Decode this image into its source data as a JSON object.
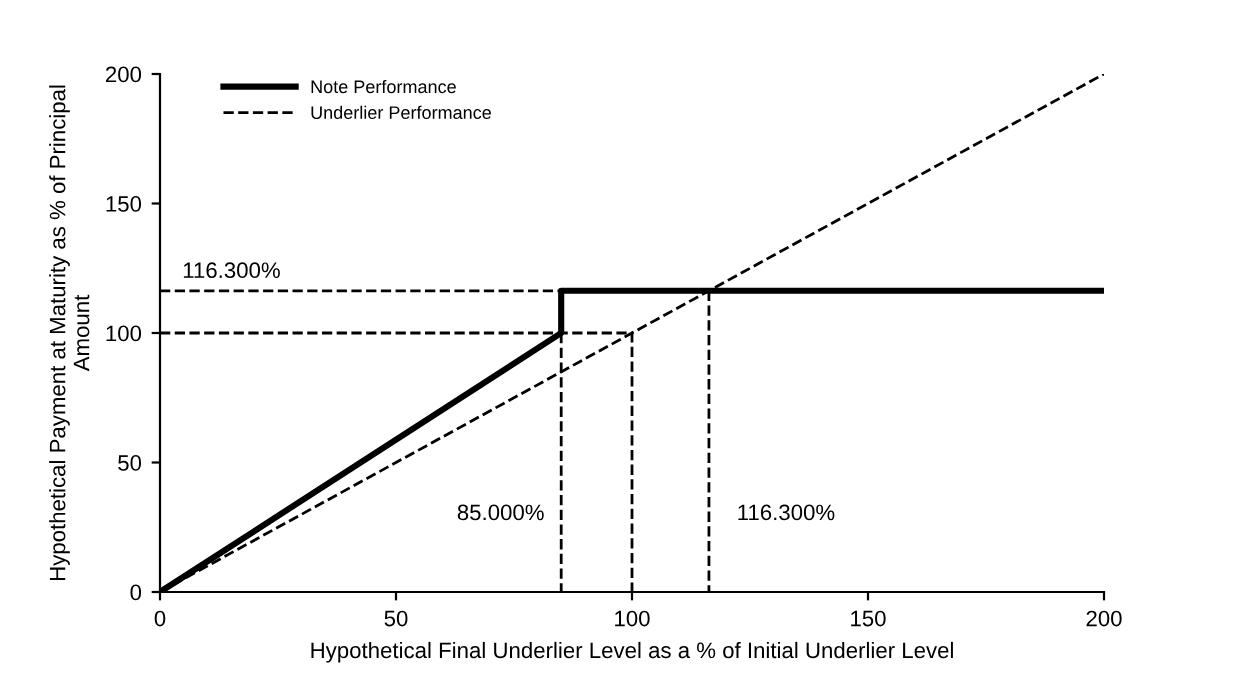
{
  "chart_data": {
    "type": "line",
    "xlabel": "Hypothetical Final Underlier Level as a % of Initial Underlier Level",
    "ylabel": "Hypothetical Payment at Maturity as % of Principal\nAmount",
    "xlim": [
      0,
      200
    ],
    "ylim": [
      0,
      200
    ],
    "xticks": [
      0,
      50,
      100,
      150,
      200
    ],
    "yticks": [
      0,
      50,
      100,
      150,
      200
    ],
    "grid": false,
    "legend": "top left",
    "marker": "none",
    "series": [
      {
        "name": "Note Performance",
        "color": "#000000",
        "line_style": "solid",
        "x": [
          0,
          85,
          85,
          200
        ],
        "values": [
          0,
          100,
          116.3,
          116.3
        ]
      },
      {
        "name": "Underlier Performance",
        "color": "#000000",
        "line_style": "dashed",
        "x": [
          0,
          200
        ],
        "values": [
          0,
          200
        ]
      },
      {
        "color": "#000000",
        "line_style": "dashed",
        "x": [
          0,
          85
        ],
        "values": [
          116.3,
          116.3
        ]
      },
      {
        "color": "#000000",
        "line_style": "dashed",
        "x": [
          0,
          100,
          100
        ],
        "values": [
          100,
          100,
          0
        ]
      },
      {
        "color": "#000000",
        "line_style": "dashed",
        "x": [
          85,
          85
        ],
        "values": [
          100,
          0
        ]
      },
      {
        "color": "#000000",
        "line_style": "dashed",
        "x": [
          116.3,
          116.3
        ],
        "values": [
          116.3,
          0
        ]
      }
    ],
    "annotations": [
      {
        "text": "116.300%",
        "x": 0,
        "y": 116.3
      },
      {
        "text": "85.000%",
        "x": 85,
        "y": 30
      },
      {
        "text": "116.300%",
        "x": 116.3,
        "y": 30
      }
    ]
  }
}
